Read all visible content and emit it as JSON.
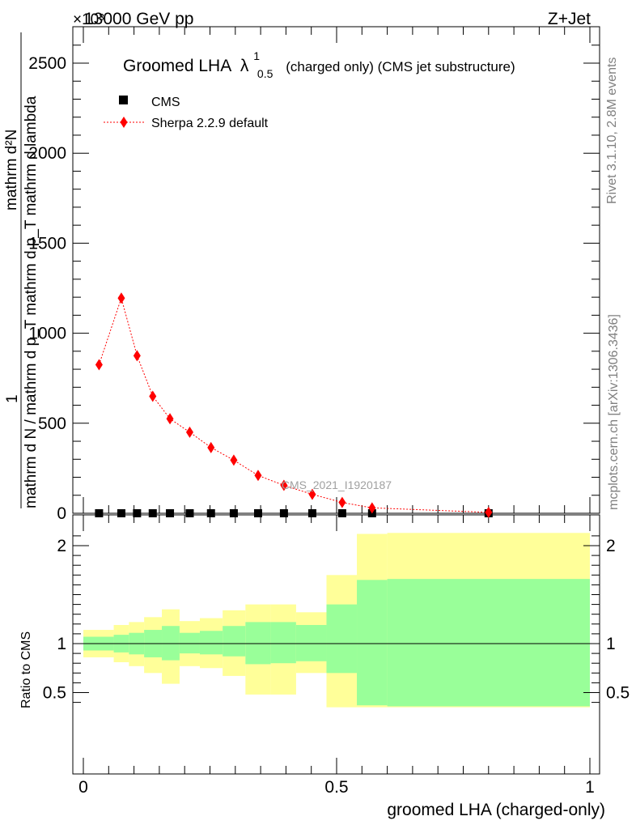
{
  "header": {
    "energy": "13000 GeV pp",
    "process": "Z+Jet",
    "exponent": "×10³"
  },
  "side": {
    "rivet": "Rivet 3.1.10,  2.8M events",
    "source": "mcplots.cern.ch [arXiv:1306.3436]"
  },
  "watermark": "CMS_2021_I1920187",
  "chart_data": [
    {
      "type": "line",
      "title": "Groomed LHA λ¹₀.₅  (charged only) (CMS jet substructure)",
      "title_main": "Groomed LHA",
      "title_lambda": "λ",
      "title_sup": "1",
      "title_sub": "0.5",
      "title_rest": "(charged only) (CMS jet substructure)",
      "ylabel_top": "1",
      "ylabel_den": "mathrm d N / mathrm d p_T mathrm d p_T mathrm d lambda",
      "ylabel_num": "mathrm d²N",
      "yscale_note": "×10³",
      "xlim": [
        0,
        1
      ],
      "ylim": [
        0,
        2.7
      ],
      "yticks": [
        0,
        0.5,
        1.0,
        1.5,
        2.0,
        2.5
      ],
      "ytick_labels": [
        "0",
        "500",
        "1000",
        "1500",
        "2000",
        "2500"
      ],
      "legend": {
        "placement": "top-left",
        "entries": [
          "CMS",
          "Sherpa 2.2.9 default"
        ]
      },
      "series": [
        {
          "name": "CMS",
          "marker": "square",
          "color": "#000000",
          "x": [
            0.031,
            0.075,
            0.106,
            0.137,
            0.171,
            0.21,
            0.252,
            0.297,
            0.345,
            0.396,
            0.452,
            0.511,
            0.57,
            0.8
          ],
          "y": [
            0,
            0,
            0,
            0,
            0,
            0,
            0,
            0,
            0,
            0,
            0,
            0,
            0,
            0
          ]
        },
        {
          "name": "Sherpa 2.2.9 default",
          "marker": "diamond",
          "color": "#ff0000",
          "x": [
            0.031,
            0.075,
            0.106,
            0.137,
            0.171,
            0.21,
            0.252,
            0.297,
            0.345,
            0.396,
            0.452,
            0.511,
            0.57,
            0.8
          ],
          "y": [
            0.825,
            1.195,
            0.875,
            0.65,
            0.525,
            0.45,
            0.365,
            0.295,
            0.21,
            0.155,
            0.105,
            0.06,
            0.03,
            0.005
          ]
        }
      ]
    },
    {
      "type": "area",
      "ylabel": "Ratio to CMS",
      "xlabel": "groomed LHA (charged-only)",
      "xlim": [
        0,
        1
      ],
      "ylim": [
        0.35,
        2.25
      ],
      "xticks": [
        0,
        0.5,
        1
      ],
      "xtick_labels": [
        "0",
        "0.5",
        "1"
      ],
      "yticks": [
        0.5,
        1,
        2
      ],
      "ytick_labels": [
        "0.5",
        "1",
        "2"
      ],
      "bins": [
        {
          "lo": 0.0,
          "hi": 0.06,
          "in_lo": 0.93,
          "in_hi": 1.07,
          "out_lo": 0.86,
          "out_hi": 1.14
        },
        {
          "lo": 0.06,
          "hi": 0.09,
          "in_lo": 0.93,
          "in_hi": 1.07,
          "out_lo": 0.86,
          "out_hi": 1.14
        },
        {
          "lo": 0.09,
          "hi": 0.12,
          "in_lo": 0.93,
          "in_hi": 1.07,
          "out_lo": 0.86,
          "out_hi": 1.14
        },
        {
          "lo": 0.12,
          "hi": 0.155,
          "in_lo": 0.93,
          "in_hi": 1.07,
          "out_lo": 0.86,
          "out_hi": 1.14
        },
        {
          "lo": 0.155,
          "hi": 0.19,
          "in_lo": 0.93,
          "in_hi": 1.07,
          "out_lo": 0.86,
          "out_hi": 1.14
        },
        {
          "lo": 0.19,
          "hi": 0.23,
          "in_lo": 0.93,
          "in_hi": 1.07,
          "out_lo": 0.86,
          "out_hi": 1.14
        },
        {
          "lo": 0.23,
          "hi": 0.275,
          "in_lo": 0.93,
          "in_hi": 1.07,
          "out_lo": 0.86,
          "out_hi": 1.14
        },
        {
          "lo": 0.275,
          "hi": 0.32,
          "in_lo": 0.93,
          "in_hi": 1.07,
          "out_lo": 0.86,
          "out_hi": 1.14
        },
        {
          "lo": 0.32,
          "hi": 0.37,
          "in_lo": 0.93,
          "in_hi": 1.07,
          "out_lo": 0.86,
          "out_hi": 1.14
        },
        {
          "lo": 0.37,
          "hi": 0.42,
          "in_lo": 0.93,
          "in_hi": 1.07,
          "out_lo": 0.86,
          "out_hi": 1.14
        },
        {
          "lo": 0.42,
          "hi": 0.48,
          "in_lo": 0.93,
          "in_hi": 1.07,
          "out_lo": 0.86,
          "out_hi": 1.14
        },
        {
          "lo": 0.48,
          "hi": 0.54,
          "in_lo": 0.93,
          "in_hi": 1.07,
          "out_lo": 0.86,
          "out_hi": 1.14
        },
        {
          "lo": 0.54,
          "hi": 0.6,
          "in_lo": 0.93,
          "in_hi": 1.07,
          "out_lo": 0.86,
          "out_hi": 1.14
        },
        {
          "lo": 0.6,
          "hi": 1.0,
          "in_lo": 0.93,
          "in_hi": 1.07,
          "out_lo": 0.86,
          "out_hi": 1.14
        }
      ],
      "bands": [
        {
          "lo": 0.0,
          "hi": 0.06,
          "in_lo": 0.93,
          "in_hi": 1.07,
          "out_lo": 0.86,
          "out_hi": 1.14
        },
        {
          "lo": 0.06,
          "hi": 0.09,
          "in_lo": 0.91,
          "in_hi": 1.09,
          "out_lo": 0.81,
          "out_hi": 1.19
        },
        {
          "lo": 0.09,
          "hi": 0.12,
          "in_lo": 0.89,
          "in_hi": 1.11,
          "out_lo": 0.77,
          "out_hi": 1.22
        },
        {
          "lo": 0.12,
          "hi": 0.155,
          "in_lo": 0.86,
          "in_hi": 1.14,
          "out_lo": 0.7,
          "out_hi": 1.27
        },
        {
          "lo": 0.155,
          "hi": 0.19,
          "in_lo": 0.83,
          "in_hi": 1.18,
          "out_lo": 0.59,
          "out_hi": 1.35
        },
        {
          "lo": 0.19,
          "hi": 0.23,
          "in_lo": 0.9,
          "in_hi": 1.11,
          "out_lo": 0.77,
          "out_hi": 1.23
        },
        {
          "lo": 0.23,
          "hi": 0.275,
          "in_lo": 0.89,
          "in_hi": 1.13,
          "out_lo": 0.75,
          "out_hi": 1.26
        },
        {
          "lo": 0.275,
          "hi": 0.32,
          "in_lo": 0.87,
          "in_hi": 1.18,
          "out_lo": 0.67,
          "out_hi": 1.34
        },
        {
          "lo": 0.32,
          "hi": 0.37,
          "in_lo": 0.79,
          "in_hi": 1.22,
          "out_lo": 0.48,
          "out_hi": 1.4
        },
        {
          "lo": 0.37,
          "hi": 0.42,
          "in_lo": 0.8,
          "in_hi": 1.22,
          "out_lo": 0.48,
          "out_hi": 1.4
        },
        {
          "lo": 0.42,
          "hi": 0.48,
          "in_lo": 0.82,
          "in_hi": 1.19,
          "out_lo": 0.7,
          "out_hi": 1.32
        },
        {
          "lo": 0.48,
          "hi": 0.54,
          "in_lo": 0.7,
          "in_hi": 1.4,
          "out_lo": 0.3,
          "out_hi": 1.7
        },
        {
          "lo": 0.54,
          "hi": 0.6,
          "in_lo": 0.37,
          "in_hi": 1.65,
          "out_lo": 0.3,
          "out_hi": 2.12
        },
        {
          "lo": 0.6,
          "hi": 1.0,
          "in_lo": 0.36,
          "in_hi": 1.66,
          "out_lo": 0.3,
          "out_hi": 2.13
        }
      ],
      "reference_line": 1
    }
  ]
}
